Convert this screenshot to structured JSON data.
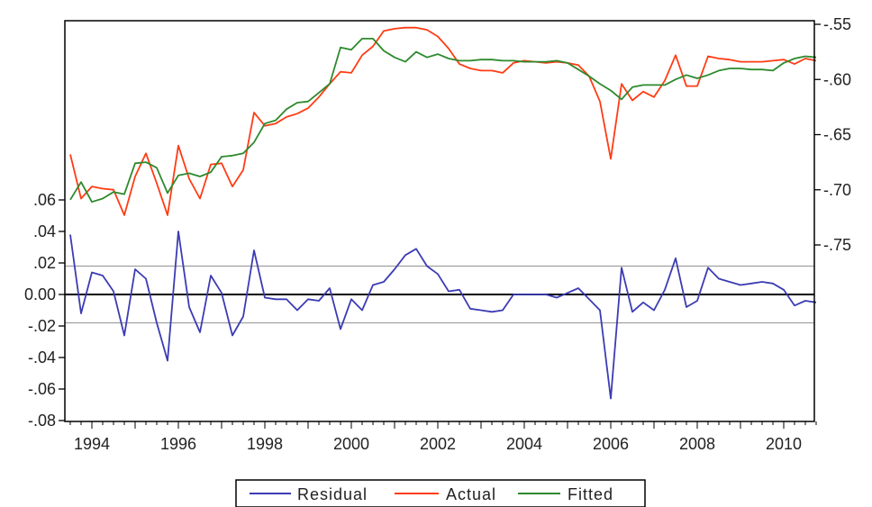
{
  "chart_data": {
    "type": "line",
    "grid": false,
    "legend_position": "bottom",
    "x_ticks": [
      "1994",
      "1996",
      "1998",
      "2000",
      "2002",
      "2004",
      "2006",
      "2008",
      "2010"
    ],
    "x_range": [
      1993.5,
      2010.75
    ],
    "left_axis": {
      "range": [
        -0.08,
        0.07
      ],
      "ticks": [
        ".06",
        ".04",
        ".02",
        "0.00",
        "-.02",
        "-.04",
        "-.06",
        "-.08"
      ],
      "tick_values": [
        0.06,
        0.04,
        0.02,
        0.0,
        -0.02,
        -0.04,
        -0.06,
        -0.08
      ],
      "reference_lines": [
        0.018,
        -0.018
      ],
      "zero_line": 0.0
    },
    "right_axis": {
      "range": [
        -0.8,
        -0.55
      ],
      "ticks": [
        "-.55",
        "-.60",
        "-.65",
        "-.70",
        "-.75"
      ],
      "tick_values": [
        -0.55,
        -0.6,
        -0.65,
        -0.7,
        -0.75
      ]
    },
    "series": [
      {
        "name": "Residual",
        "axis": "left",
        "color": "#3c3cb4",
        "x": [
          1993.5,
          1993.75,
          1994.0,
          1994.25,
          1994.5,
          1994.75,
          1995.0,
          1995.25,
          1995.5,
          1995.75,
          1996.0,
          1996.25,
          1996.5,
          1996.75,
          1997.0,
          1997.25,
          1997.5,
          1997.75,
          1998.0,
          1998.25,
          1998.5,
          1998.75,
          1999.0,
          1999.25,
          1999.5,
          1999.75,
          2000.0,
          2000.25,
          2000.5,
          2000.75,
          2001.0,
          2001.25,
          2001.5,
          2001.75,
          2002.0,
          2002.25,
          2002.5,
          2002.75,
          2003.0,
          2003.25,
          2003.5,
          2003.75,
          2004.0,
          2004.25,
          2004.5,
          2004.75,
          2005.0,
          2005.25,
          2005.5,
          2005.75,
          2006.0,
          2006.25,
          2006.5,
          2006.75,
          2007.0,
          2007.25,
          2007.5,
          2007.75,
          2008.0,
          2008.25,
          2008.5,
          2008.75,
          2009.0,
          2009.25,
          2009.5,
          2009.75,
          2010.0,
          2010.25,
          2010.5,
          2010.75
        ],
        "values": [
          0.038,
          -0.012,
          0.014,
          0.012,
          0.002,
          -0.026,
          0.016,
          0.01,
          -0.018,
          -0.042,
          0.04,
          -0.008,
          -0.024,
          0.012,
          0.001,
          -0.026,
          -0.014,
          0.028,
          -0.002,
          -0.003,
          -0.003,
          -0.01,
          -0.003,
          -0.004,
          0.004,
          -0.022,
          -0.003,
          -0.01,
          0.006,
          0.008,
          0.016,
          0.025,
          0.029,
          0.018,
          0.013,
          0.002,
          0.003,
          -0.009,
          -0.01,
          -0.011,
          -0.01,
          0.0,
          0.0,
          0.0,
          0.0,
          -0.002,
          0.001,
          0.004,
          -0.003,
          -0.01,
          -0.066,
          0.017,
          -0.011,
          -0.005,
          -0.01,
          0.003,
          0.023,
          -0.008,
          -0.004,
          0.017,
          0.01,
          0.008,
          0.006,
          0.007,
          0.008,
          0.007,
          0.003,
          -0.007,
          -0.004,
          -0.005
        ]
      },
      {
        "name": "Actual",
        "axis": "right",
        "color": "#ff3c14",
        "x": [
          1993.5,
          1993.75,
          1994.0,
          1994.25,
          1994.5,
          1994.75,
          1995.0,
          1995.25,
          1995.5,
          1995.75,
          1996.0,
          1996.25,
          1996.5,
          1996.75,
          1997.0,
          1997.25,
          1997.5,
          1997.75,
          1998.0,
          1998.25,
          1998.5,
          1998.75,
          1999.0,
          1999.25,
          1999.5,
          1999.75,
          2000.0,
          2000.25,
          2000.5,
          2000.75,
          2001.0,
          2001.25,
          2001.5,
          2001.75,
          2002.0,
          2002.25,
          2002.5,
          2002.75,
          2003.0,
          2003.25,
          2003.5,
          2003.75,
          2004.0,
          2004.25,
          2004.5,
          2004.75,
          2005.0,
          2005.25,
          2005.5,
          2005.75,
          2006.0,
          2006.25,
          2006.5,
          2006.75,
          2007.0,
          2007.25,
          2007.5,
          2007.75,
          2008.0,
          2008.25,
          2008.5,
          2008.75,
          2009.0,
          2009.25,
          2009.5,
          2009.75,
          2010.0,
          2010.25,
          2010.5,
          2010.75
        ],
        "values": [
          -0.668,
          -0.708,
          -0.697,
          -0.699,
          -0.7,
          -0.723,
          -0.688,
          -0.667,
          -0.694,
          -0.723,
          -0.66,
          -0.69,
          -0.708,
          -0.677,
          -0.676,
          -0.697,
          -0.682,
          -0.63,
          -0.642,
          -0.64,
          -0.634,
          -0.631,
          -0.626,
          -0.616,
          -0.604,
          -0.593,
          -0.594,
          -0.578,
          -0.57,
          -0.556,
          -0.554,
          -0.553,
          -0.553,
          -0.555,
          -0.561,
          -0.572,
          -0.586,
          -0.59,
          -0.592,
          -0.592,
          -0.594,
          -0.585,
          -0.583,
          -0.584,
          -0.585,
          -0.584,
          -0.585,
          -0.587,
          -0.597,
          -0.62,
          -0.672,
          -0.604,
          -0.619,
          -0.611,
          -0.616,
          -0.601,
          -0.578,
          -0.606,
          -0.606,
          -0.579,
          -0.581,
          -0.582,
          -0.584,
          -0.584,
          -0.584,
          -0.583,
          -0.582,
          -0.586,
          -0.581,
          -0.583
        ]
      },
      {
        "name": "Fitted",
        "axis": "right",
        "color": "#2d8a2d",
        "x": [
          1993.5,
          1993.75,
          1994.0,
          1994.25,
          1994.5,
          1994.75,
          1995.0,
          1995.25,
          1995.5,
          1995.75,
          1996.0,
          1996.25,
          1996.5,
          1996.75,
          1997.0,
          1997.25,
          1997.5,
          1997.75,
          1998.0,
          1998.25,
          1998.5,
          1998.75,
          1999.0,
          1999.25,
          1999.5,
          1999.75,
          2000.0,
          2000.25,
          2000.5,
          2000.75,
          2001.0,
          2001.25,
          2001.5,
          2001.75,
          2002.0,
          2002.25,
          2002.5,
          2002.75,
          2003.0,
          2003.25,
          2003.5,
          2003.75,
          2004.0,
          2004.25,
          2004.5,
          2004.75,
          2005.0,
          2005.25,
          2005.5,
          2005.75,
          2006.0,
          2006.25,
          2006.5,
          2006.75,
          2007.0,
          2007.25,
          2007.5,
          2007.75,
          2008.0,
          2008.25,
          2008.5,
          2008.75,
          2009.0,
          2009.25,
          2009.5,
          2009.75,
          2010.0,
          2010.25,
          2010.5,
          2010.75
        ],
        "values": [
          -0.709,
          -0.693,
          -0.711,
          -0.708,
          -0.702,
          -0.704,
          -0.676,
          -0.675,
          -0.68,
          -0.703,
          -0.687,
          -0.685,
          -0.688,
          -0.684,
          -0.67,
          -0.669,
          -0.667,
          -0.657,
          -0.64,
          -0.637,
          -0.627,
          -0.621,
          -0.62,
          -0.612,
          -0.604,
          -0.571,
          -0.573,
          -0.563,
          -0.563,
          -0.574,
          -0.58,
          -0.584,
          -0.575,
          -0.58,
          -0.577,
          -0.581,
          -0.583,
          -0.583,
          -0.582,
          -0.582,
          -0.583,
          -0.583,
          -0.584,
          -0.584,
          -0.584,
          -0.583,
          -0.585,
          -0.591,
          -0.597,
          -0.604,
          -0.61,
          -0.618,
          -0.607,
          -0.605,
          -0.605,
          -0.605,
          -0.6,
          -0.596,
          -0.599,
          -0.596,
          -0.592,
          -0.59,
          -0.59,
          -0.591,
          -0.591,
          -0.592,
          -0.585,
          -0.581,
          -0.579,
          -0.58
        ]
      }
    ]
  }
}
